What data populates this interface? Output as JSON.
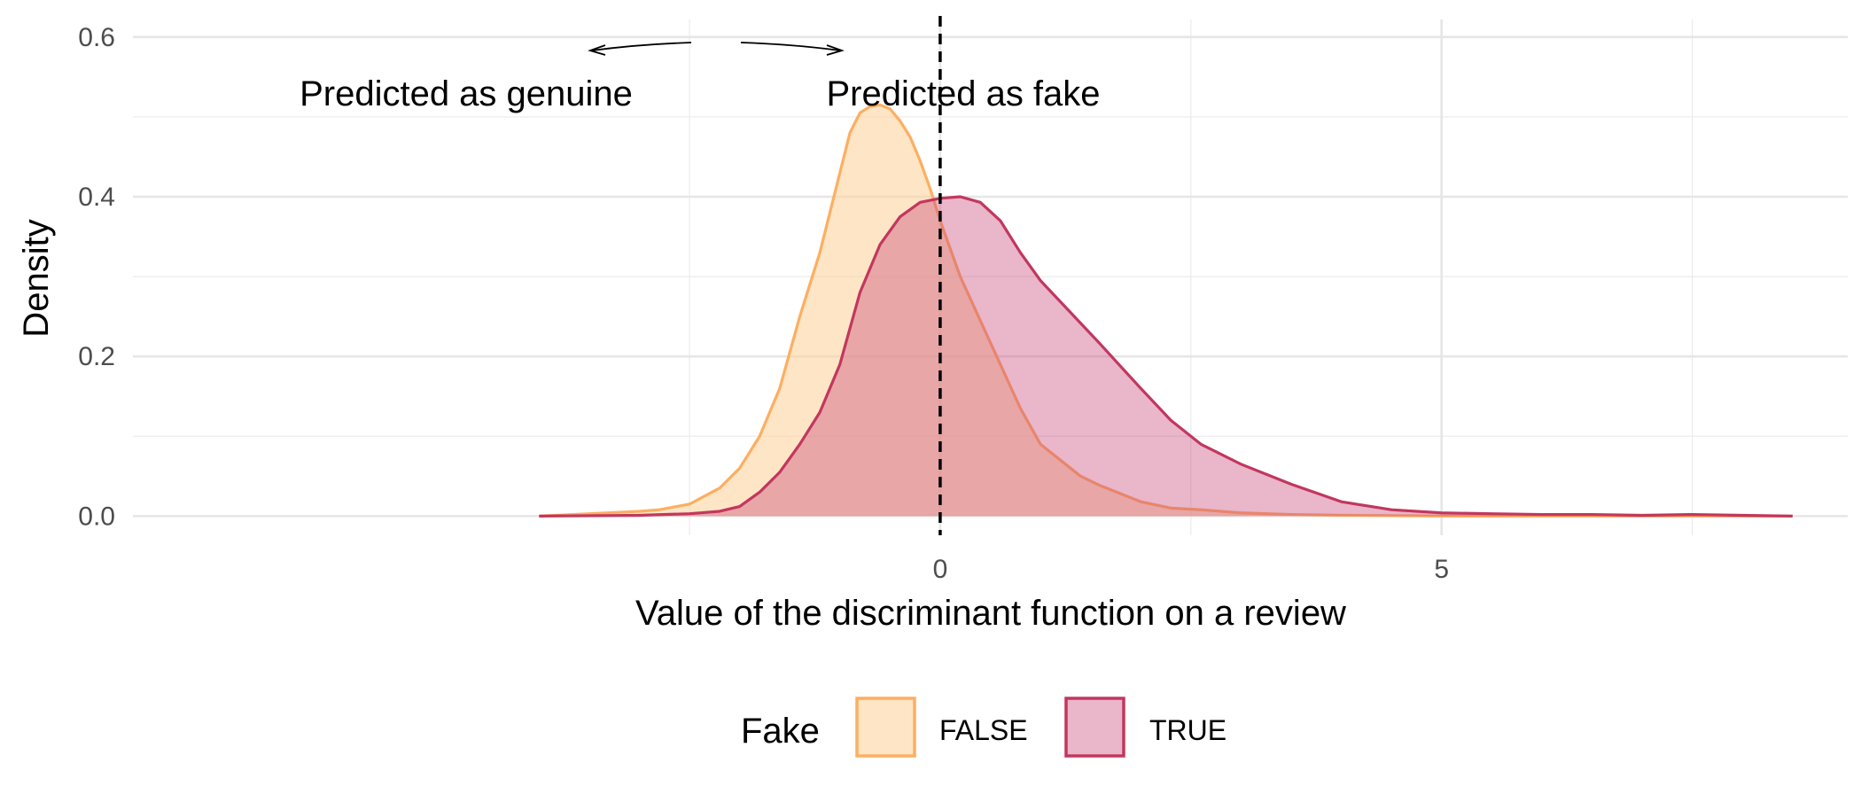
{
  "chart_data": {
    "type": "area",
    "title": "",
    "xlabel": "Value of the discriminant function on a review",
    "ylabel": "Density",
    "xlim": [
      -8.05,
      9.05
    ],
    "ylim": [
      -0.024,
      0.622
    ],
    "x_ticks": [
      0,
      5
    ],
    "x_minor": [
      -2.5,
      2.5,
      7.5
    ],
    "y_ticks": [
      0.0,
      0.2,
      0.4,
      0.6
    ],
    "y_minor": [
      0.1,
      0.3,
      0.5
    ],
    "y_tick_labels": [
      "0.0",
      "0.2",
      "0.4",
      "0.6"
    ],
    "grid": true,
    "threshold_x": 0,
    "annotations": [
      {
        "text": "Predicted as genuine",
        "x": -2.0,
        "y": 0.545
      },
      {
        "text": "Predicted as fake",
        "x": 2.0,
        "y": 0.545
      }
    ],
    "legend": {
      "title": "Fake",
      "position": "bottom"
    },
    "series": [
      {
        "name": "FALSE",
        "fill": "#fdd49e",
        "line": "#fdae61",
        "x": [
          -4.0,
          -3.5,
          -3.0,
          -2.8,
          -2.5,
          -2.2,
          -2.0,
          -1.8,
          -1.6,
          -1.4,
          -1.2,
          -1.0,
          -0.9,
          -0.8,
          -0.7,
          -0.6,
          -0.5,
          -0.4,
          -0.3,
          -0.2,
          -0.1,
          0.0,
          0.2,
          0.4,
          0.6,
          0.8,
          1.0,
          1.2,
          1.4,
          1.6,
          1.8,
          2.0,
          2.3,
          2.6,
          3.0,
          3.5,
          4.0,
          5.0,
          6.0,
          7.0,
          8.5
        ],
        "y": [
          0.0,
          0.003,
          0.006,
          0.008,
          0.015,
          0.035,
          0.06,
          0.1,
          0.16,
          0.25,
          0.33,
          0.43,
          0.48,
          0.505,
          0.513,
          0.515,
          0.51,
          0.495,
          0.475,
          0.445,
          0.41,
          0.37,
          0.3,
          0.245,
          0.19,
          0.135,
          0.09,
          0.07,
          0.05,
          0.038,
          0.028,
          0.018,
          0.01,
          0.008,
          0.004,
          0.002,
          0.001,
          0.0,
          0.0,
          0.0,
          0.0
        ]
      },
      {
        "name": "TRUE",
        "fill": "#c9487a",
        "line": "#c2375f",
        "x": [
          -4.0,
          -3.0,
          -2.5,
          -2.2,
          -2.0,
          -1.8,
          -1.6,
          -1.4,
          -1.2,
          -1.0,
          -0.8,
          -0.6,
          -0.4,
          -0.2,
          0.0,
          0.2,
          0.4,
          0.6,
          0.8,
          1.0,
          1.3,
          1.6,
          2.0,
          2.3,
          2.6,
          3.0,
          3.5,
          4.0,
          4.5,
          5.0,
          5.5,
          6.0,
          6.5,
          7.0,
          7.5,
          8.0,
          8.5
        ],
        "y": [
          0.0,
          0.001,
          0.003,
          0.006,
          0.012,
          0.03,
          0.055,
          0.09,
          0.13,
          0.19,
          0.28,
          0.34,
          0.375,
          0.393,
          0.398,
          0.4,
          0.393,
          0.37,
          0.33,
          0.295,
          0.255,
          0.215,
          0.16,
          0.12,
          0.09,
          0.065,
          0.04,
          0.018,
          0.008,
          0.004,
          0.003,
          0.002,
          0.002,
          0.001,
          0.002,
          0.001,
          0.0
        ]
      }
    ]
  }
}
